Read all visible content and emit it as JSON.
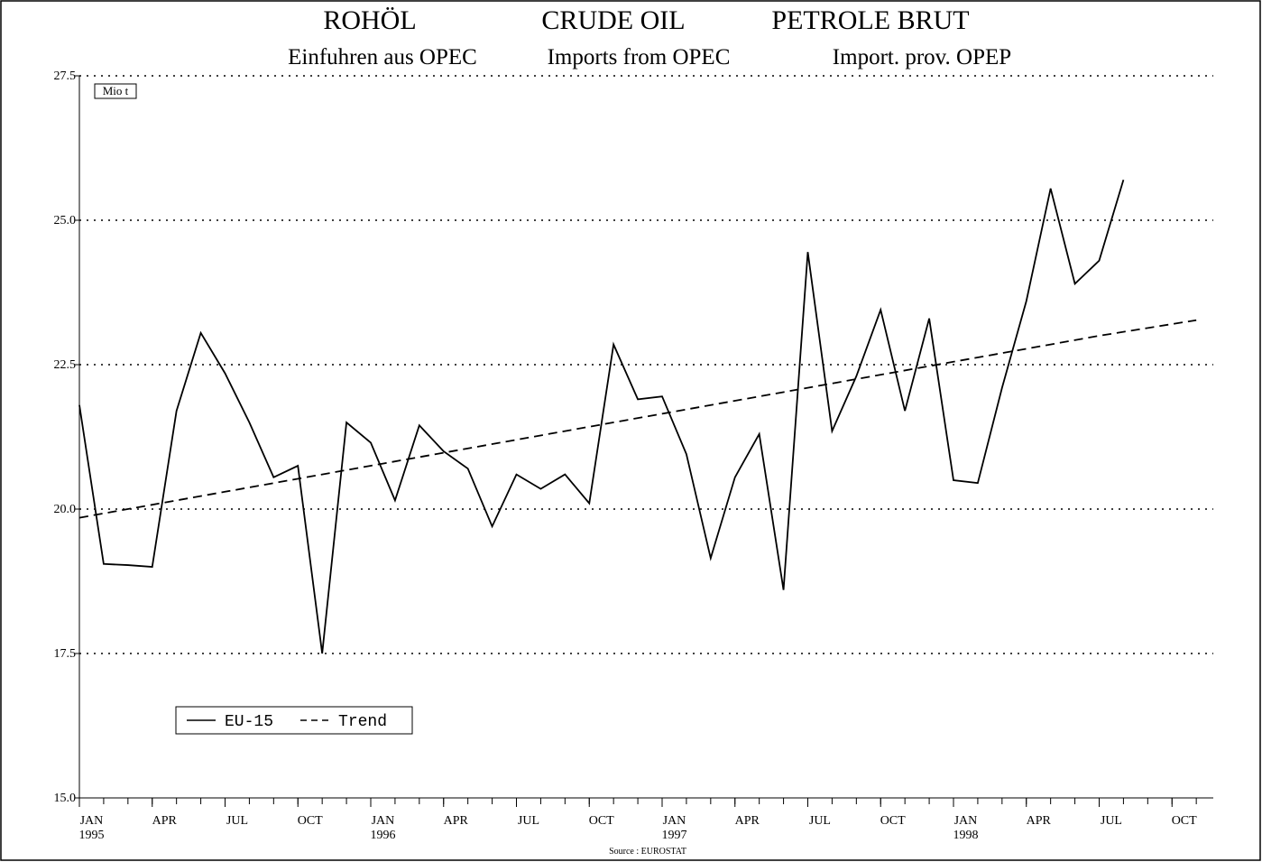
{
  "chart_data": {
    "type": "line",
    "title": [
      "ROHÖL",
      "CRUDE OIL",
      "PETROLE BRUT"
    ],
    "subtitle": [
      "Einfuhren aus OPEC",
      "Imports from OPEC",
      "Import. prov. OPEP"
    ],
    "unit": "Mio t",
    "source": "Source : EUROSTAT",
    "xlim": [
      0,
      46.7
    ],
    "xticks": [
      {
        "value": 0,
        "label": "JAN",
        "year": "1995"
      },
      {
        "value": 3,
        "label": "APR"
      },
      {
        "value": 6,
        "label": "JUL"
      },
      {
        "value": 9,
        "label": "OCT"
      },
      {
        "value": 12,
        "label": "JAN",
        "year": "1996"
      },
      {
        "value": 15,
        "label": "APR"
      },
      {
        "value": 18,
        "label": "JUL"
      },
      {
        "value": 21,
        "label": "OCT"
      },
      {
        "value": 24,
        "label": "JAN",
        "year": "1997"
      },
      {
        "value": 27,
        "label": "APR"
      },
      {
        "value": 30,
        "label": "JUL"
      },
      {
        "value": 33,
        "label": "OCT"
      },
      {
        "value": 36,
        "label": "JAN",
        "year": "1998"
      },
      {
        "value": 39,
        "label": "APR"
      },
      {
        "value": 42,
        "label": "JUL"
      },
      {
        "value": 45,
        "label": "OCT"
      }
    ],
    "ylim": [
      15,
      27.5
    ],
    "yticks": [
      {
        "value": 15,
        "label": "15.0"
      },
      {
        "value": 17.5,
        "label": "17.5"
      },
      {
        "value": 20,
        "label": "20.0"
      },
      {
        "value": 22.5,
        "label": "22.5"
      },
      {
        "value": 25,
        "label": "25.0"
      },
      27.5
    ],
    "grid": true,
    "legend": "bottom-left",
    "series": [
      {
        "name": "EU-15",
        "color": "#000000",
        "dash": false,
        "x": [
          0,
          1,
          2,
          3,
          4,
          5,
          6,
          7,
          8,
          9,
          10,
          11,
          12,
          13,
          14,
          15,
          16,
          17,
          18,
          19,
          20,
          21,
          22,
          23,
          24,
          25,
          26,
          27,
          28,
          29,
          30,
          31,
          32,
          33,
          34,
          35,
          36,
          37,
          38,
          39,
          40,
          41,
          42,
          43
        ],
        "values": [
          21.8,
          19.05,
          19.03,
          19.0,
          21.7,
          23.05,
          22.35,
          21.5,
          20.55,
          20.75,
          17.5,
          21.5,
          21.15,
          20.15,
          21.45,
          21.0,
          20.7,
          19.7,
          20.6,
          20.35,
          20.6,
          20.1,
          22.85,
          21.9,
          21.95,
          20.95,
          19.15,
          20.55,
          21.3,
          18.6,
          24.45,
          21.35,
          22.3,
          23.45,
          21.7,
          23.3,
          20.5,
          20.45,
          22.1,
          23.6,
          25.55,
          23.9,
          24.3,
          25.7
        ]
      },
      {
        "name": "Trend",
        "color": "#000000",
        "dash": true,
        "x": [
          0,
          6,
          12,
          18,
          24,
          30,
          36,
          42,
          46
        ],
        "values": [
          19.85,
          20.3,
          20.75,
          21.2,
          21.65,
          22.1,
          22.55,
          23.0,
          23.27
        ]
      }
    ]
  }
}
